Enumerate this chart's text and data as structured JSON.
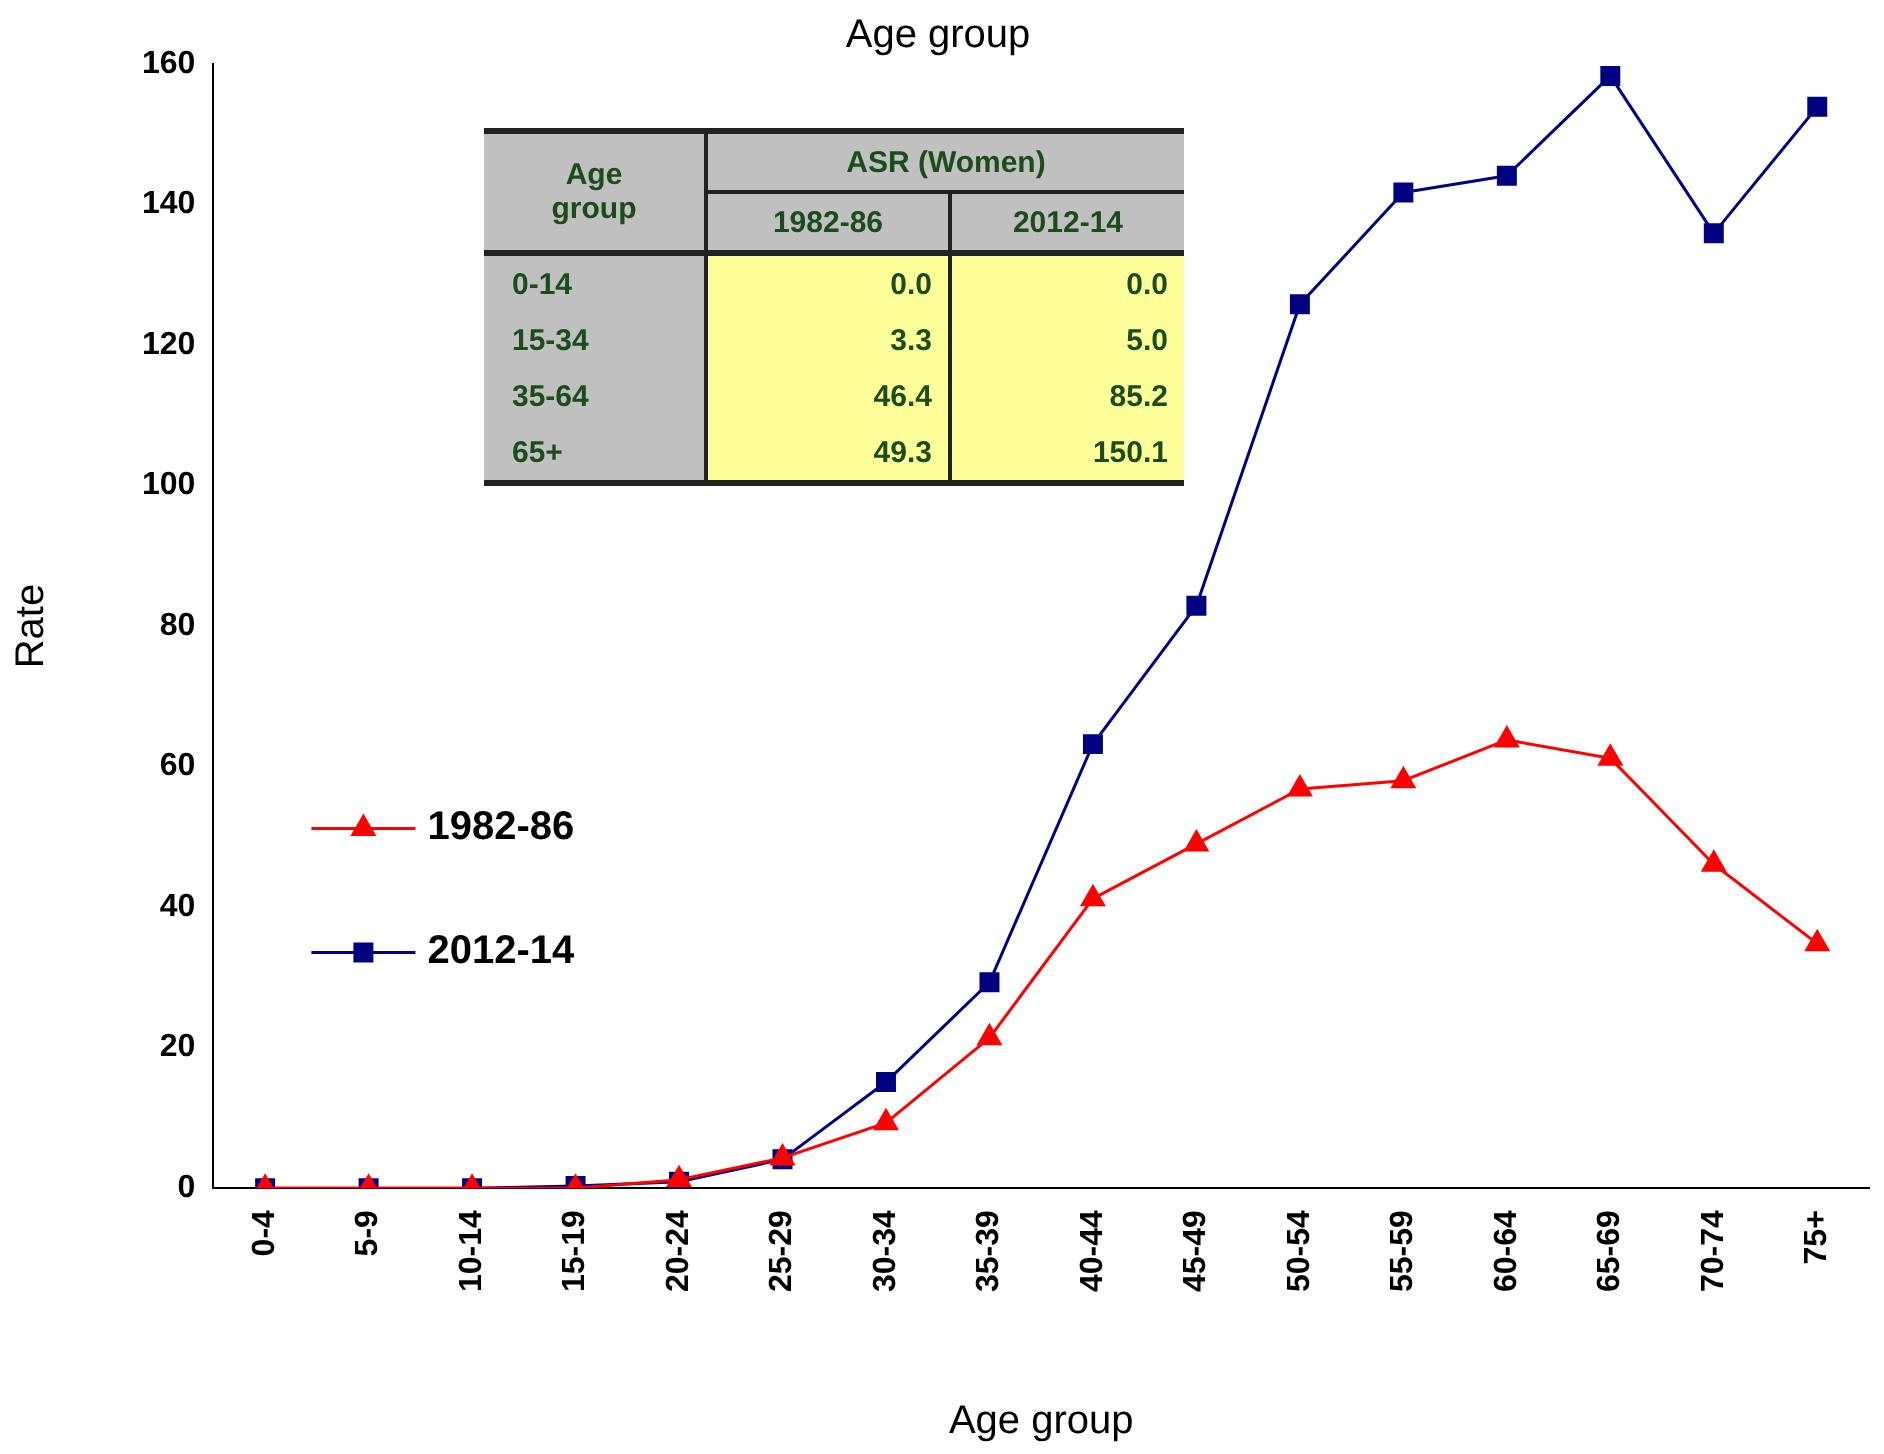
{
  "chart_data": {
    "type": "line",
    "title": "Age group",
    "xlabel": "Age group",
    "ylabel": "Rate",
    "categories": [
      "0-4",
      "5-9",
      "10-14",
      "15-19",
      "20-24",
      "25-29",
      "30-34",
      "35-39",
      "40-44",
      "45-49",
      "50-54",
      "55-59",
      "60-64",
      "65-69",
      "70-74",
      "75+"
    ],
    "series": [
      {
        "name": "1982-86",
        "color": "#ff0000",
        "marker": "triangle",
        "values": [
          0,
          0,
          0,
          0,
          1.2,
          4.3,
          9.3,
          21.4,
          41.2,
          49,
          56.8,
          58,
          63.8,
          61.2,
          46.1,
          34.8
        ]
      },
      {
        "name": "2012-14",
        "color": "#000080",
        "marker": "square",
        "values": [
          0,
          0,
          0,
          0.3,
          0.9,
          4.1,
          15.1,
          29.3,
          63.2,
          82.9,
          125.8,
          141.7,
          144.1,
          158.3,
          135.9,
          153.9
        ]
      }
    ],
    "ylim": [
      0,
      160
    ],
    "yticks": [
      0,
      20,
      40,
      60,
      80,
      100,
      120,
      140,
      160
    ],
    "grid": false,
    "legend": "left",
    "line_style": "solid",
    "annotations": [
      "Age group",
      "ASR (Women)",
      "1982-86",
      "2012-14",
      "0-14",
      "0.0",
      "0.0",
      "15-34",
      "3.3",
      "5.0",
      "35-64",
      "46.4",
      "85.2",
      "65+",
      "49.3",
      "150.1"
    ]
  }
}
